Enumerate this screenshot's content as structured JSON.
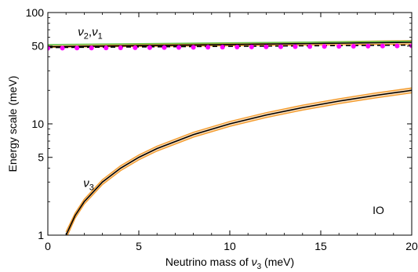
{
  "chart_data": {
    "type": "line",
    "xlabel": "Neutrino mass of ν3 (meV)",
    "xlabel_main": "Neutrino mass of ",
    "xlabel_var": "ν",
    "xlabel_sub": "3",
    "xlabel_unit": " (meV)",
    "ylabel": "Energy scale (meV)",
    "xlim": [
      0,
      20
    ],
    "ylim": [
      1,
      100
    ],
    "yscale": "log",
    "grid": false,
    "x_ticks": [
      0,
      5,
      10,
      15,
      20
    ],
    "y_ticks": [
      1,
      5,
      10,
      50,
      100
    ],
    "y_tick_labels": [
      "1",
      "5",
      "10",
      "50",
      "100"
    ],
    "annotations": {
      "upper": {
        "var1": "ν",
        "sub1": "2",
        "sep": ",",
        "var2": "ν",
        "sub2": "1"
      },
      "lower": {
        "var": "ν",
        "sub": "3"
      },
      "ordering": "IO"
    },
    "series": [
      {
        "kind": "band",
        "color": "#f39c2f",
        "x": [
          1.0,
          1.5,
          2,
          3,
          4,
          5,
          6,
          8,
          10,
          12,
          14,
          16,
          18,
          20
        ],
        "lower": [
          0.93,
          1.42,
          1.9,
          2.85,
          3.8,
          4.75,
          5.7,
          7.6,
          9.5,
          11.4,
          13.3,
          15.2,
          17.1,
          19.0
        ],
        "upper": [
          1.07,
          1.58,
          2.1,
          3.15,
          4.2,
          5.25,
          6.3,
          8.4,
          10.5,
          12.6,
          14.7,
          16.8,
          18.9,
          21.0
        ]
      },
      {
        "kind": "line",
        "color": "#000000",
        "x": [
          1.0,
          1.5,
          2,
          3,
          4,
          5,
          6,
          8,
          10,
          12,
          14,
          16,
          18,
          20
        ],
        "y": [
          1.0,
          1.5,
          2,
          3,
          4,
          5,
          6,
          8,
          10,
          12,
          14,
          16,
          18,
          20
        ]
      },
      {
        "kind": "band",
        "color": "#f39c2f",
        "x": [
          0,
          20
        ],
        "lower": [
          48.8,
          52.0
        ],
        "upper": [
          49.8,
          56.0
        ]
      },
      {
        "kind": "line",
        "color": "#000000",
        "x": [
          0,
          20
        ],
        "y": [
          49.3,
          54.0
        ]
      },
      {
        "kind": "line",
        "color": "#66c24a",
        "x": [
          0,
          20
        ],
        "y": [
          51.5,
          55.3
        ]
      },
      {
        "kind": "line",
        "color": "#000000",
        "dash": true,
        "x": [
          0,
          20
        ],
        "y": [
          48.5,
          51.0
        ]
      },
      {
        "kind": "markers",
        "color": "#ff00ff",
        "x": [
          0,
          0.8,
          1.6,
          2.4,
          3.2,
          4.0,
          4.8,
          5.6,
          6.4,
          7.2,
          8.0,
          8.8,
          9.6,
          10.4,
          11.2,
          12.0,
          12.8,
          13.6,
          14.4,
          15.2,
          16.0,
          16.8,
          17.6,
          18.4,
          19.2,
          20.0
        ],
        "y": [
          47.8,
          47.9,
          48.0,
          48.0,
          48.1,
          48.2,
          48.3,
          48.4,
          48.5,
          48.6,
          48.7,
          48.8,
          48.9,
          49.0,
          49.1,
          49.2,
          49.3,
          49.4,
          49.5,
          49.6,
          49.7,
          49.8,
          49.9,
          50.0,
          50.1,
          50.2
        ]
      }
    ]
  }
}
